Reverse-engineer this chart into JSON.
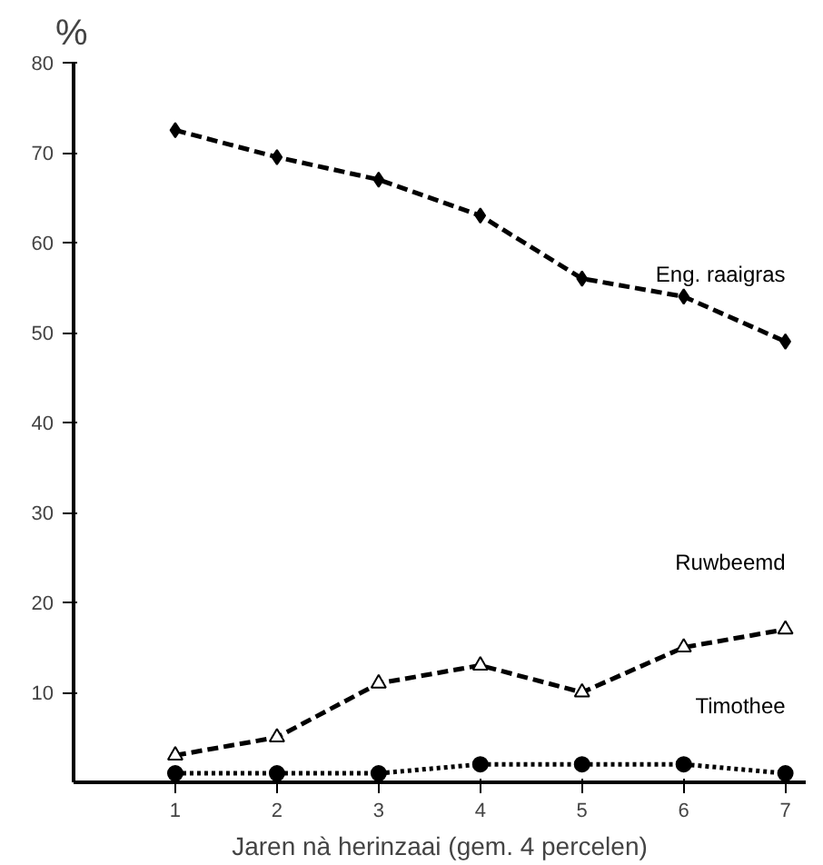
{
  "chart_data": {
    "type": "line",
    "ylabel": "%",
    "xlabel": "Jaren nà herinzaai (gem. 4 percelen)",
    "x": [
      1,
      2,
      3,
      4,
      5,
      6,
      7
    ],
    "xlim": [
      0,
      7.2
    ],
    "ylim": [
      0,
      80
    ],
    "xticks": [
      1,
      2,
      3,
      4,
      5,
      6,
      7
    ],
    "yticks": [
      10,
      20,
      30,
      40,
      50,
      60,
      70,
      80
    ],
    "grid": false,
    "series": [
      {
        "name": "Eng. raaigras",
        "color": "#000000",
        "marker": "diamond",
        "line_style": "dashed",
        "values": [
          72.5,
          69.5,
          67,
          63,
          56,
          54,
          49
        ]
      },
      {
        "name": "Ruwbeemd",
        "color": "#000000",
        "marker": "triangle",
        "line_style": "dashed",
        "values": [
          3,
          5,
          11,
          13,
          10,
          15,
          17
        ]
      },
      {
        "name": "Timothee",
        "color": "#000000",
        "marker": "circle",
        "line_style": "dotted",
        "values": [
          1,
          1,
          1,
          2,
          2,
          2,
          1
        ]
      }
    ]
  }
}
